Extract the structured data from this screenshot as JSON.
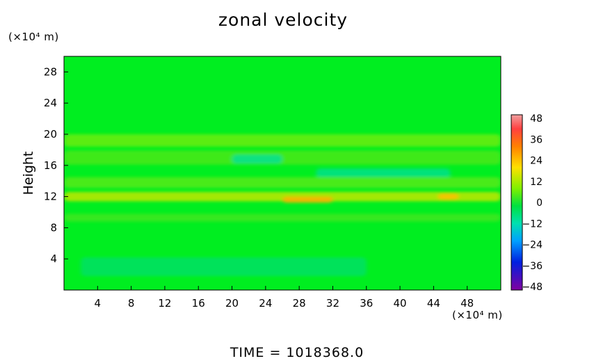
{
  "chart_data": {
    "type": "heatmap",
    "title": "zonal velocity",
    "xlabel": "",
    "ylabel": "Height",
    "x_unit_label": "(×10⁴ m)",
    "y_unit_label": "(×10⁴ m)",
    "xlim": [
      0,
      52
    ],
    "ylim": [
      0,
      30
    ],
    "x_ticks": [
      4,
      8,
      12,
      16,
      20,
      24,
      28,
      32,
      36,
      40,
      44,
      48
    ],
    "y_ticks": [
      4,
      8,
      12,
      16,
      20,
      24,
      28
    ],
    "colorbar": {
      "ticks": [
        48,
        36,
        24,
        12,
        0,
        -12,
        -24,
        -36,
        -48
      ],
      "range": [
        -48,
        48
      ]
    },
    "field_bands": [
      {
        "y_center": 19.2,
        "y_halfwidth": 0.8,
        "value": 10,
        "x_range": [
          0,
          52
        ]
      },
      {
        "y_center": 17.0,
        "y_halfwidth": 0.9,
        "value": 7,
        "x_range": [
          0,
          52
        ]
      },
      {
        "y_center": 15.0,
        "y_halfwidth": 0.6,
        "value": -8,
        "x_range": [
          30,
          46
        ]
      },
      {
        "y_center": 16.8,
        "y_halfwidth": 0.6,
        "value": -9,
        "x_range": [
          20,
          26
        ]
      },
      {
        "y_center": 13.8,
        "y_halfwidth": 0.7,
        "value": 8,
        "x_range": [
          0,
          52
        ]
      },
      {
        "y_center": 12.0,
        "y_halfwidth": 0.6,
        "value": 18,
        "x_range": [
          0,
          52
        ]
      },
      {
        "y_center": 11.6,
        "y_halfwidth": 0.4,
        "value": 30,
        "x_range": [
          26,
          32
        ]
      },
      {
        "y_center": 12.0,
        "y_halfwidth": 0.4,
        "value": 28,
        "x_range": [
          44.5,
          47
        ]
      },
      {
        "y_center": 9.3,
        "y_halfwidth": 0.5,
        "value": 6,
        "x_range": [
          0,
          52
        ]
      },
      {
        "y_center": 3.0,
        "y_halfwidth": 1.2,
        "value": -4,
        "x_range": [
          2,
          36
        ]
      }
    ],
    "time_label": "TIME  =  1018368.0",
    "grid": false
  }
}
